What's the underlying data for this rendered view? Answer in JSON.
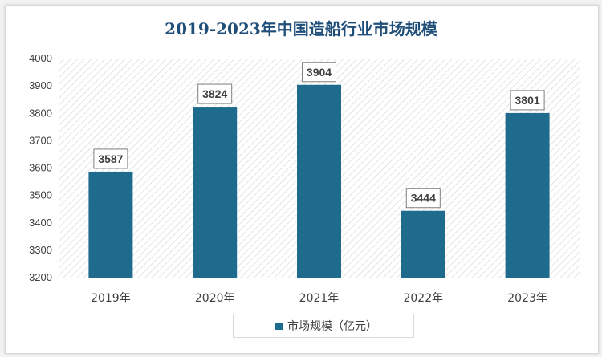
{
  "chart_data": {
    "type": "bar",
    "title": "2019-2023年中国造船行业市场规模",
    "categories": [
      "2019年",
      "2020年",
      "2021年",
      "2022年",
      "2023年"
    ],
    "series": [
      {
        "name": "市场规模（亿元）",
        "values": [
          3587,
          3824,
          3904,
          3444,
          3801
        ],
        "color": "#1f6b8e"
      }
    ],
    "ylim": [
      3200,
      4000
    ],
    "yticks": [
      3200,
      3300,
      3400,
      3500,
      3600,
      3700,
      3800,
      3900,
      4000
    ],
    "grid": false,
    "legend_position": "bottom",
    "plot_background": "diagonal-hatch"
  }
}
